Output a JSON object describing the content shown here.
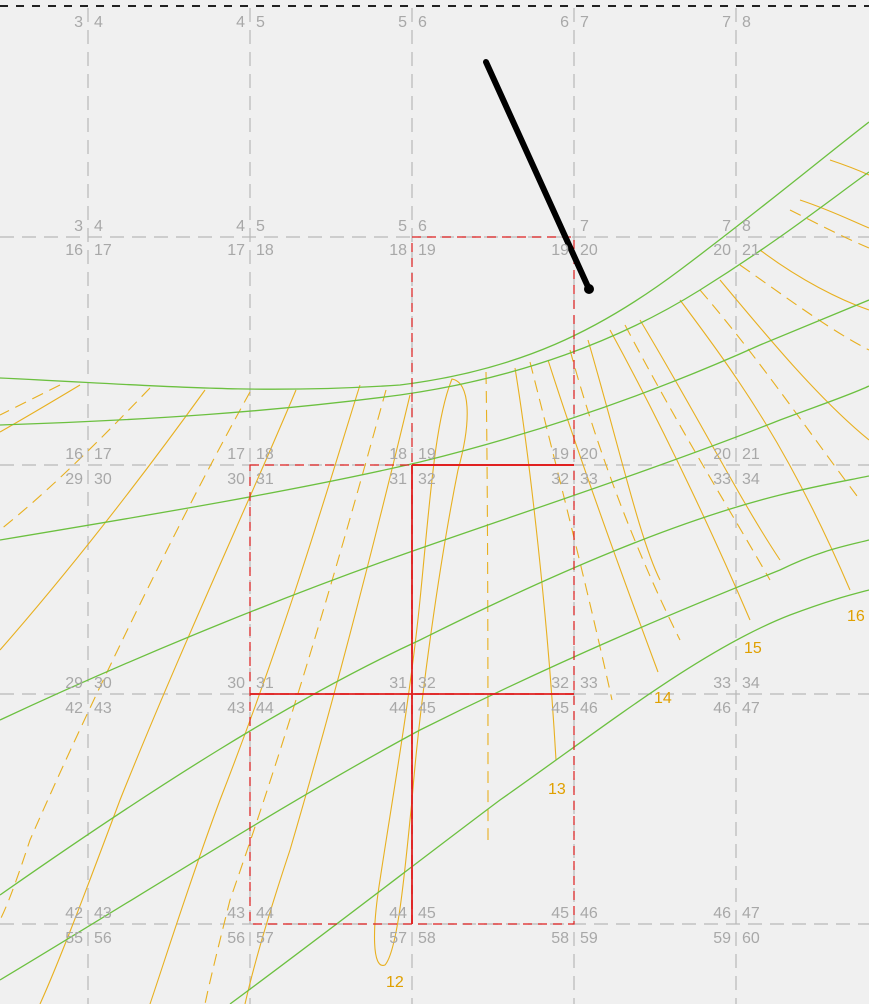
{
  "grid_labels": [
    {
      "id": "r0c0",
      "top_left": "3",
      "top_right": "4"
    },
    {
      "id": "r0c1",
      "top_left": "4",
      "top_right": "5"
    },
    {
      "id": "r0c2",
      "top_left": "5",
      "top_right": "6"
    },
    {
      "id": "r0c3",
      "top_left": "6",
      "top_right": "7"
    },
    {
      "id": "r0c4",
      "top_left": "7",
      "top_right": "8"
    },
    {
      "id": "r1c0",
      "top_left": "3",
      "top_right": "4",
      "bottom_left": "16",
      "bottom_right": "17"
    },
    {
      "id": "r1c1",
      "top_left": "4",
      "top_right": "5",
      "bottom_left": "17",
      "bottom_right": "18"
    },
    {
      "id": "r1c2",
      "top_left": "5",
      "top_right": "6",
      "bottom_left": "18",
      "bottom_right": "19"
    },
    {
      "id": "r1c3",
      "top_left": "",
      "top_right": "7",
      "bottom_left": "19",
      "bottom_right": "20"
    },
    {
      "id": "r1c4",
      "top_left": "7",
      "top_right": "8",
      "bottom_left": "20",
      "bottom_right": "21"
    },
    {
      "id": "r2c0",
      "top_left": "16",
      "top_right": "17",
      "bottom_left": "29",
      "bottom_right": "30"
    },
    {
      "id": "r2c1",
      "top_left": "17",
      "top_right": "18",
      "bottom_left": "30",
      "bottom_right": "31"
    },
    {
      "id": "r2c2",
      "top_left": "18",
      "top_right": "19",
      "bottom_left": "31",
      "bottom_right": "32"
    },
    {
      "id": "r2c3",
      "top_left": "19",
      "top_right": "20",
      "bottom_left": "32",
      "bottom_right": "33"
    },
    {
      "id": "r2c4",
      "top_left": "20",
      "top_right": "21",
      "bottom_left": "33",
      "bottom_right": "34"
    },
    {
      "id": "r3c0",
      "top_left": "29",
      "top_right": "30",
      "bottom_left": "42",
      "bottom_right": "43"
    },
    {
      "id": "r3c1",
      "top_left": "30",
      "top_right": "31",
      "bottom_left": "43",
      "bottom_right": "44"
    },
    {
      "id": "r3c2",
      "top_left": "31",
      "top_right": "32",
      "bottom_left": "44",
      "bottom_right": "45"
    },
    {
      "id": "r3c3",
      "top_left": "32",
      "top_right": "33",
      "bottom_left": "45",
      "bottom_right": "46"
    },
    {
      "id": "r3c4",
      "top_left": "33",
      "top_right": "34",
      "bottom_left": "46",
      "bottom_right": "47"
    },
    {
      "id": "r4c0",
      "top_left": "42",
      "top_right": "43",
      "bottom_left": "55",
      "bottom_right": "56"
    },
    {
      "id": "r4c1",
      "top_left": "43",
      "top_right": "44",
      "bottom_left": "56",
      "bottom_right": "57"
    },
    {
      "id": "r4c2",
      "top_left": "44",
      "top_right": "45",
      "bottom_left": "57",
      "bottom_right": "58"
    },
    {
      "id": "r4c3",
      "top_left": "45",
      "top_right": "46",
      "bottom_left": "58",
      "bottom_right": "59"
    },
    {
      "id": "r4c4",
      "top_left": "46",
      "top_right": "47",
      "bottom_left": "59",
      "bottom_right": "60"
    }
  ],
  "hour_labels": [
    {
      "id": "hour-12",
      "text": "12"
    },
    {
      "id": "hour-13",
      "text": "13"
    },
    {
      "id": "hour-14",
      "text": "14"
    },
    {
      "id": "hour-15",
      "text": "15"
    },
    {
      "id": "hour-16",
      "text": "16"
    }
  ],
  "colors": {
    "background": "#f0f0f0",
    "grid": "#b8b8b8",
    "grid_label": "#a8a8a8",
    "selection": "#e02020",
    "hour_line": "#e8b020",
    "day_curve": "#6cc040",
    "gnomon": "#000000"
  }
}
